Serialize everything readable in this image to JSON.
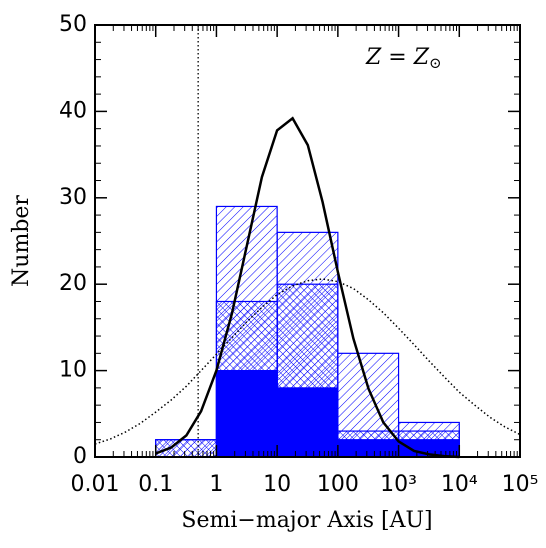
{
  "chart_data": {
    "type": "histogram",
    "xlabel": "Semi−major Axis [AU]",
    "ylabel": "Number",
    "annotation": {
      "text": "Z =  Z",
      "sub": "⊙"
    },
    "xscale": "log",
    "bins": [
      0.1,
      1,
      10,
      100,
      1000,
      10000
    ],
    "series": [
      {
        "color": "#0000ff",
        "fill": "hatch",
        "values": [
          2,
          29,
          26,
          12,
          4
        ]
      },
      {
        "color": "#0000ff",
        "fill": "crosshatch",
        "values": [
          2,
          18,
          20,
          3,
          3
        ]
      },
      {
        "color": "#0000ff",
        "fill": "solid",
        "values": [
          0,
          10,
          8,
          2,
          2
        ]
      }
    ],
    "curves": [
      {
        "style": "solid",
        "color": "#000000",
        "x": [
          0.1,
          0.18,
          0.32,
          0.56,
          1,
          1.8,
          3.2,
          5.6,
          10,
          18,
          32,
          56,
          100,
          180,
          320,
          560,
          1000,
          1800,
          3200,
          5600,
          10000
        ],
        "values": [
          0.4,
          1.1,
          2.5,
          5.3,
          10.0,
          16.6,
          24.6,
          32.4,
          37.8,
          39.2,
          36.1,
          29.5,
          21.4,
          13.7,
          7.9,
          4.0,
          1.8,
          0.7,
          0.3,
          0.1,
          0.0
        ]
      },
      {
        "style": "dotted",
        "color": "#000000",
        "x": [
          0.01,
          0.018,
          0.032,
          0.056,
          0.1,
          0.18,
          0.32,
          0.56,
          1,
          1.8,
          3.2,
          5.6,
          10,
          18,
          32,
          56,
          100,
          180,
          320,
          560,
          1000,
          1800,
          3200,
          5600,
          10000,
          18000,
          32000,
          56000,
          100000
        ],
        "values": [
          1.5,
          2.1,
          2.9,
          3.9,
          5.2,
          6.6,
          8.2,
          10.0,
          11.9,
          13.8,
          15.7,
          17.3,
          18.8,
          19.8,
          20.4,
          20.6,
          20.3,
          19.5,
          18.2,
          16.7,
          14.9,
          13.0,
          11.1,
          9.3,
          7.5,
          6.0,
          4.6,
          3.5,
          2.6
        ]
      }
    ],
    "reference_line_x": 0.5,
    "xlim": [
      0.01,
      100000
    ],
    "xticks": [
      0.01,
      0.1,
      1,
      10,
      100,
      {
        "value": 1000,
        "label": "10³"
      },
      {
        "value": 10000,
        "label": "10⁴"
      },
      {
        "value": 100000,
        "label": "10⁵"
      }
    ],
    "ylim": [
      0,
      50
    ],
    "yticks": [
      0,
      10,
      20,
      30,
      40,
      50
    ],
    "minor_ticks": true,
    "grid": false
  }
}
